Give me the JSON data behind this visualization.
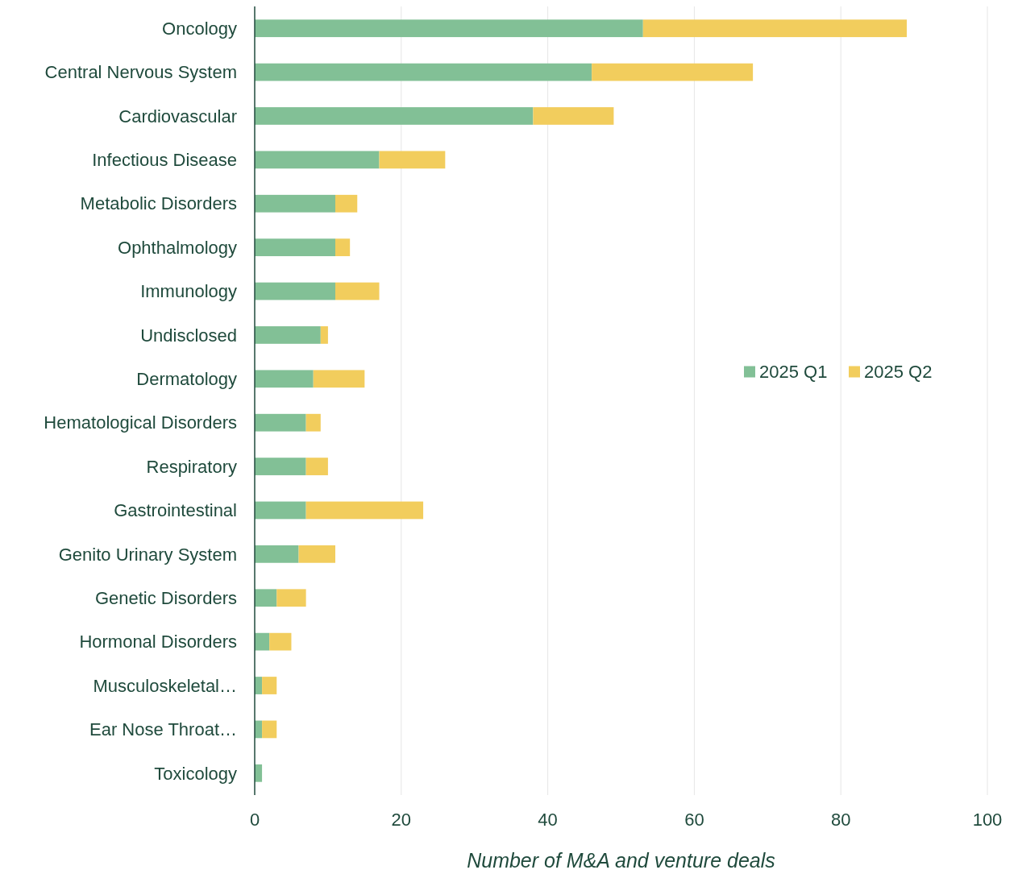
{
  "chart_data": {
    "type": "bar",
    "orientation": "horizontal",
    "stacked": true,
    "xlabel": "Number of M&A and venture deals",
    "categories": [
      "Oncology",
      "Central Nervous System",
      "Cardiovascular",
      "Infectious Disease",
      "Metabolic Disorders",
      "Ophthalmology",
      "Immunology",
      "Undisclosed",
      "Dermatology",
      "Hematological Disorders",
      "Respiratory",
      "Gastrointestinal",
      "Genito Urinary System",
      "Genetic Disorders",
      "Hormonal Disorders",
      "Musculoskeletal…",
      "Ear Nose Throat…",
      "Toxicology"
    ],
    "series": [
      {
        "name": "2025 Q1",
        "color": "#82c096",
        "values": [
          53,
          46,
          38,
          17,
          11,
          11,
          11,
          9,
          8,
          7,
          7,
          7,
          6,
          3,
          2,
          1,
          1,
          1
        ]
      },
      {
        "name": "2025 Q2",
        "color": "#f2cd5d",
        "values": [
          36,
          22,
          11,
          9,
          3,
          2,
          6,
          1,
          7,
          2,
          3,
          16,
          5,
          4,
          3,
          2,
          2,
          0
        ]
      }
    ],
    "xlim": [
      0,
      100
    ],
    "xticks": [
      0,
      20,
      40,
      60,
      80,
      100
    ],
    "grid": "x",
    "legend": "right"
  }
}
